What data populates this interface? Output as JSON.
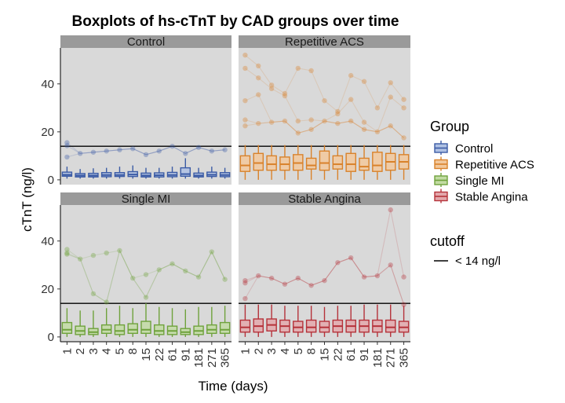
{
  "chart_data": {
    "type": "boxplot",
    "title": "Boxplots of hs-cTnT by CAD groups over time",
    "xlabel": "Time (days)",
    "ylabel": "cTnT (ng/l)",
    "x": [
      "1",
      "2",
      "3",
      "4",
      "5",
      "8",
      "15",
      "22",
      "61",
      "91",
      "181",
      "271",
      "365"
    ],
    "ylim": [
      -2,
      55
    ],
    "yticks": [
      0,
      20,
      40
    ],
    "cutoff": {
      "value": 14,
      "label": "< 14 ng/l"
    },
    "legend": {
      "group_title": "Group",
      "cutoff_title": "cutoff",
      "position": "right"
    },
    "panels": [
      {
        "name": "Control",
        "color": "#3B5BA5",
        "fill": "#AFC1E3",
        "series": [
          {
            "x": "1",
            "min": 0.5,
            "q1": 1.5,
            "median": 2.1,
            "q3": 3.2,
            "max": 5.5
          },
          {
            "x": "2",
            "min": 0.5,
            "q1": 1.2,
            "median": 1.8,
            "q3": 2.6,
            "max": 4.5
          },
          {
            "x": "3",
            "min": 0.5,
            "q1": 1.2,
            "median": 1.8,
            "q3": 2.7,
            "max": 4.8
          },
          {
            "x": "4",
            "min": 0.5,
            "q1": 1.3,
            "median": 2.0,
            "q3": 3.0,
            "max": 5.0
          },
          {
            "x": "5",
            "min": 0.5,
            "q1": 1.4,
            "median": 2.0,
            "q3": 3.0,
            "max": 5.5
          },
          {
            "x": "8",
            "min": 0.5,
            "q1": 1.4,
            "median": 2.2,
            "q3": 3.4,
            "max": 6.0
          },
          {
            "x": "15",
            "min": 0.5,
            "q1": 1.2,
            "median": 1.8,
            "q3": 2.8,
            "max": 5.0
          },
          {
            "x": "22",
            "min": 0.5,
            "q1": 1.2,
            "median": 1.9,
            "q3": 2.9,
            "max": 5.0
          },
          {
            "x": "61",
            "min": 0.5,
            "q1": 1.3,
            "median": 2.0,
            "q3": 3.1,
            "max": 5.5
          },
          {
            "x": "91",
            "min": 0.5,
            "q1": 1.5,
            "median": 2.4,
            "q3": 5.0,
            "max": 9.0
          },
          {
            "x": "181",
            "min": 0.5,
            "q1": 1.2,
            "median": 1.8,
            "q3": 2.8,
            "max": 5.0
          },
          {
            "x": "271",
            "min": 0.5,
            "q1": 1.4,
            "median": 2.1,
            "q3": 3.2,
            "max": 5.5
          },
          {
            "x": "365",
            "min": 0.5,
            "q1": 1.3,
            "median": 2.0,
            "q3": 3.0,
            "max": 5.0
          }
        ],
        "points": [
          {
            "x": "1",
            "y": 15.5
          },
          {
            "x": "1",
            "y": 14.2
          },
          {
            "x": "1",
            "y": 9.5
          },
          {
            "x": "2",
            "y": 11.0
          },
          {
            "x": "3",
            "y": 11.5
          },
          {
            "x": "4",
            "y": 12.0
          },
          {
            "x": "5",
            "y": 12.5
          },
          {
            "x": "8",
            "y": 13.0
          },
          {
            "x": "15",
            "y": 10.5
          },
          {
            "x": "22",
            "y": 12.0
          },
          {
            "x": "61",
            "y": 14.0
          },
          {
            "x": "91",
            "y": 11.0
          },
          {
            "x": "181",
            "y": 13.5
          },
          {
            "x": "271",
            "y": 12.0
          },
          {
            "x": "365",
            "y": 12.5
          }
        ]
      },
      {
        "name": "Repetitive ACS",
        "color": "#D9822B",
        "fill": "#F2C89C",
        "series": [
          {
            "x": "1",
            "min": 0,
            "q1": 3.5,
            "median": 6.0,
            "q3": 10.0,
            "max": 14.5
          },
          {
            "x": "2",
            "min": 0,
            "q1": 4.0,
            "median": 7.0,
            "q3": 11.0,
            "max": 14.5
          },
          {
            "x": "3",
            "min": 0,
            "q1": 4.0,
            "median": 6.5,
            "q3": 10.0,
            "max": 14.5
          },
          {
            "x": "4",
            "min": 0,
            "q1": 4.0,
            "median": 6.5,
            "q3": 9.5,
            "max": 14.5
          },
          {
            "x": "5",
            "min": 0,
            "q1": 4.0,
            "median": 7.0,
            "q3": 10.5,
            "max": 14.5
          },
          {
            "x": "8",
            "min": 0,
            "q1": 4.5,
            "median": 6.0,
            "q3": 9.0,
            "max": 14.5
          },
          {
            "x": "15",
            "min": 0,
            "q1": 4.0,
            "median": 7.0,
            "q3": 12.0,
            "max": 14.5
          },
          {
            "x": "22",
            "min": 0,
            "q1": 4.5,
            "median": 6.5,
            "q3": 10.0,
            "max": 14.5
          },
          {
            "x": "61",
            "min": 0,
            "q1": 3.5,
            "median": 6.5,
            "q3": 11.0,
            "max": 14.5
          },
          {
            "x": "91",
            "min": 0,
            "q1": 4.0,
            "median": 5.5,
            "q3": 9.0,
            "max": 14.5
          },
          {
            "x": "181",
            "min": 0,
            "q1": 3.5,
            "median": 6.0,
            "q3": 11.5,
            "max": 14.5
          },
          {
            "x": "271",
            "min": 0,
            "q1": 4.0,
            "median": 7.5,
            "q3": 11.0,
            "max": 14.5
          },
          {
            "x": "365",
            "min": 0,
            "q1": 4.5,
            "median": 7.5,
            "q3": 10.5,
            "max": 14.5
          }
        ],
        "points": [
          {
            "x": "1",
            "y": 52.0
          },
          {
            "x": "1",
            "y": 46.5
          },
          {
            "x": "1",
            "y": 33.0
          },
          {
            "x": "1",
            "y": 25.0
          },
          {
            "x": "1",
            "y": 22.5
          },
          {
            "x": "2",
            "y": 47.5
          },
          {
            "x": "2",
            "y": 42.5
          },
          {
            "x": "2",
            "y": 35.5
          },
          {
            "x": "2",
            "y": 23.5
          },
          {
            "x": "3",
            "y": 39.5
          },
          {
            "x": "3",
            "y": 38.0
          },
          {
            "x": "3",
            "y": 24.0
          },
          {
            "x": "4",
            "y": 36.0
          },
          {
            "x": "4",
            "y": 35.0
          },
          {
            "x": "4",
            "y": 24.5
          },
          {
            "x": "5",
            "y": 46.5
          },
          {
            "x": "5",
            "y": 24.5
          },
          {
            "x": "5",
            "y": 19.5
          },
          {
            "x": "8",
            "y": 45.5
          },
          {
            "x": "8",
            "y": 25.0
          },
          {
            "x": "8",
            "y": 21.0
          },
          {
            "x": "15",
            "y": 33.0
          },
          {
            "x": "15",
            "y": 24.5
          },
          {
            "x": "22",
            "y": 28.5
          },
          {
            "x": "22",
            "y": 27.5
          },
          {
            "x": "22",
            "y": 23.5
          },
          {
            "x": "61",
            "y": 43.5
          },
          {
            "x": "61",
            "y": 33.5
          },
          {
            "x": "61",
            "y": 24.5
          },
          {
            "x": "91",
            "y": 41.0
          },
          {
            "x": "91",
            "y": 24.0
          },
          {
            "x": "91",
            "y": 21.0
          },
          {
            "x": "181",
            "y": 30.0
          },
          {
            "x": "181",
            "y": 20.0
          },
          {
            "x": "271",
            "y": 40.5
          },
          {
            "x": "271",
            "y": 34.5
          },
          {
            "x": "271",
            "y": 22.5
          },
          {
            "x": "365",
            "y": 33.5
          },
          {
            "x": "365",
            "y": 30.0
          },
          {
            "x": "365",
            "y": 17.5
          }
        ]
      },
      {
        "name": "Single MI",
        "color": "#6FA23C",
        "fill": "#C2DBA3",
        "series": [
          {
            "x": "1",
            "min": 0,
            "q1": 1.5,
            "median": 3.0,
            "q3": 6.0,
            "max": 12.0
          },
          {
            "x": "2",
            "min": 0,
            "q1": 1.0,
            "median": 2.5,
            "q3": 4.5,
            "max": 11.0
          },
          {
            "x": "3",
            "min": 0,
            "q1": 1.0,
            "median": 2.0,
            "q3": 3.5,
            "max": 11.0
          },
          {
            "x": "4",
            "min": 0,
            "q1": 1.5,
            "median": 3.0,
            "q3": 5.0,
            "max": 12.0
          },
          {
            "x": "5",
            "min": 0,
            "q1": 1.0,
            "median": 2.5,
            "q3": 5.0,
            "max": 13.0
          },
          {
            "x": "8",
            "min": 0,
            "q1": 1.5,
            "median": 3.0,
            "q3": 5.5,
            "max": 12.0
          },
          {
            "x": "15",
            "min": 0,
            "q1": 1.5,
            "median": 3.0,
            "q3": 6.5,
            "max": 14.0
          },
          {
            "x": "22",
            "min": 0,
            "q1": 1.0,
            "median": 2.5,
            "q3": 5.0,
            "max": 12.5
          },
          {
            "x": "61",
            "min": 0,
            "q1": 1.0,
            "median": 2.5,
            "q3": 4.5,
            "max": 12.0
          },
          {
            "x": "91",
            "min": 0,
            "q1": 1.0,
            "median": 2.0,
            "q3": 3.5,
            "max": 11.5
          },
          {
            "x": "181",
            "min": 0,
            "q1": 1.0,
            "median": 2.5,
            "q3": 4.5,
            "max": 12.5
          },
          {
            "x": "271",
            "min": 0,
            "q1": 1.5,
            "median": 3.0,
            "q3": 5.0,
            "max": 12.5
          },
          {
            "x": "365",
            "min": 0,
            "q1": 1.5,
            "median": 3.0,
            "q3": 6.0,
            "max": 13.0
          }
        ],
        "points": [
          {
            "x": "1",
            "y": 36.5
          },
          {
            "x": "1",
            "y": 35.0
          },
          {
            "x": "1",
            "y": 34.5
          },
          {
            "x": "2",
            "y": 32.5
          },
          {
            "x": "3",
            "y": 34.0
          },
          {
            "x": "3",
            "y": 18.0
          },
          {
            "x": "4",
            "y": 35.0
          },
          {
            "x": "4",
            "y": 14.5
          },
          {
            "x": "5",
            "y": 36.0
          },
          {
            "x": "8",
            "y": 24.5
          },
          {
            "x": "15",
            "y": 26.0
          },
          {
            "x": "15",
            "y": 16.5
          },
          {
            "x": "22",
            "y": 28.0
          },
          {
            "x": "61",
            "y": 30.5
          },
          {
            "x": "91",
            "y": 27.5
          },
          {
            "x": "181",
            "y": 25.0
          },
          {
            "x": "271",
            "y": 35.5
          },
          {
            "x": "365",
            "y": 24.0
          }
        ]
      },
      {
        "name": "Stable Angina",
        "color": "#B5323A",
        "fill": "#E3A8AC",
        "series": [
          {
            "x": "1",
            "min": 0,
            "q1": 2.0,
            "median": 4.0,
            "q3": 7.0,
            "max": 13.5
          },
          {
            "x": "2",
            "min": 0,
            "q1": 2.0,
            "median": 4.5,
            "q3": 7.5,
            "max": 13.5
          },
          {
            "x": "3",
            "min": 0,
            "q1": 2.5,
            "median": 5.0,
            "q3": 7.5,
            "max": 13.5
          },
          {
            "x": "4",
            "min": 0,
            "q1": 2.0,
            "median": 4.5,
            "q3": 7.0,
            "max": 13.0
          },
          {
            "x": "5",
            "min": 0,
            "q1": 2.0,
            "median": 4.0,
            "q3": 6.5,
            "max": 13.0
          },
          {
            "x": "8",
            "min": 0,
            "q1": 2.0,
            "median": 4.0,
            "q3": 7.0,
            "max": 13.0
          },
          {
            "x": "15",
            "min": 0,
            "q1": 2.0,
            "median": 4.0,
            "q3": 6.5,
            "max": 12.5
          },
          {
            "x": "22",
            "min": 0,
            "q1": 2.0,
            "median": 4.5,
            "q3": 7.0,
            "max": 13.0
          },
          {
            "x": "61",
            "min": 0,
            "q1": 2.0,
            "median": 4.5,
            "q3": 7.0,
            "max": 13.0
          },
          {
            "x": "91",
            "min": 0,
            "q1": 2.0,
            "median": 4.5,
            "q3": 7.0,
            "max": 13.5
          },
          {
            "x": "181",
            "min": 0,
            "q1": 2.0,
            "median": 4.5,
            "q3": 7.0,
            "max": 13.5
          },
          {
            "x": "271",
            "min": 0,
            "q1": 2.0,
            "median": 4.0,
            "q3": 7.0,
            "max": 13.5
          },
          {
            "x": "365",
            "min": 0,
            "q1": 2.0,
            "median": 4.0,
            "q3": 6.5,
            "max": 13.0
          }
        ],
        "points": [
          {
            "x": "1",
            "y": 23.5
          },
          {
            "x": "1",
            "y": 22.5
          },
          {
            "x": "1",
            "y": 16.0
          },
          {
            "x": "2",
            "y": 25.5
          },
          {
            "x": "3",
            "y": 24.5
          },
          {
            "x": "4",
            "y": 22.0
          },
          {
            "x": "5",
            "y": 24.5
          },
          {
            "x": "8",
            "y": 21.5
          },
          {
            "x": "15",
            "y": 23.5
          },
          {
            "x": "22",
            "y": 31.0
          },
          {
            "x": "61",
            "y": 33.0
          },
          {
            "x": "91",
            "y": 25.0
          },
          {
            "x": "181",
            "y": 25.5
          },
          {
            "x": "271",
            "y": 53.0
          },
          {
            "x": "271",
            "y": 30.0
          },
          {
            "x": "365",
            "y": 25.0
          },
          {
            "x": "365",
            "y": 13.5
          }
        ]
      }
    ]
  }
}
